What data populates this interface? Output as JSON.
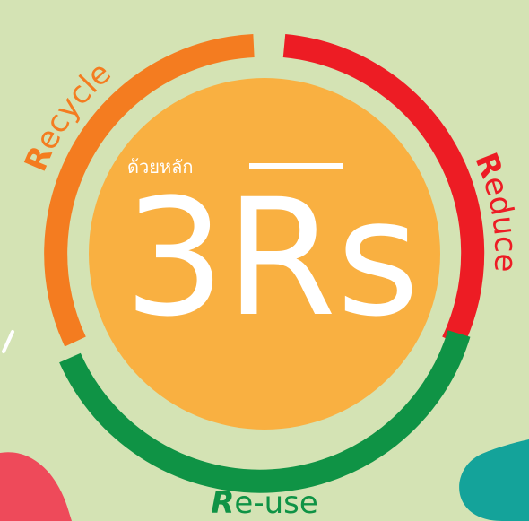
{
  "center": {
    "subtitle": "ด้วยหลัก",
    "title": "3Rs"
  },
  "segments": [
    {
      "initial": "R",
      "rest": "ecycle"
    },
    {
      "initial": "R",
      "rest": "educe"
    },
    {
      "initial": "R",
      "rest": "e-use"
    }
  ]
}
